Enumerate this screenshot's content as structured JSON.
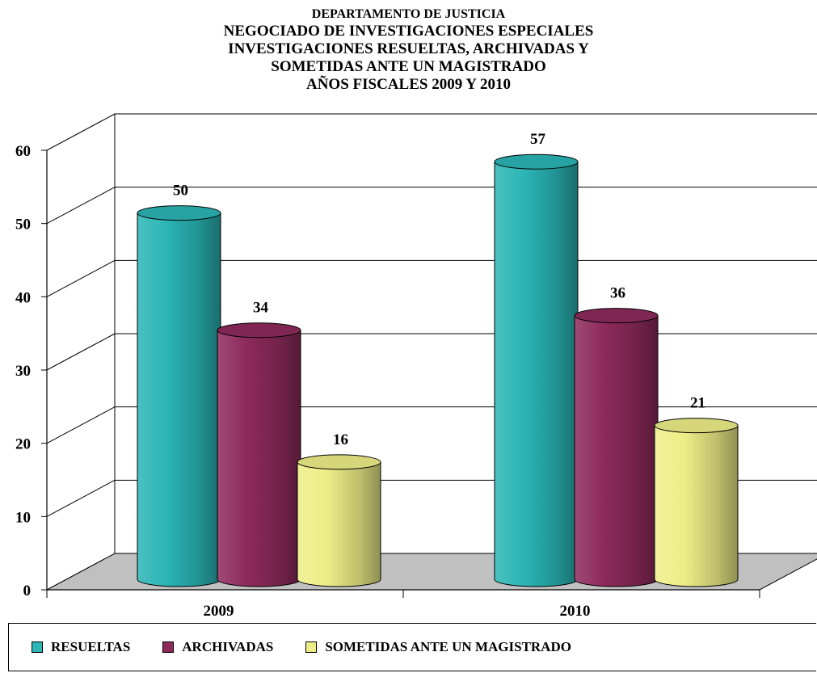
{
  "chart_data": {
    "type": "bar",
    "title_lines": [
      "DEPARTAMENTO DE  JUSTICIA",
      "NEGOCIADO DE INVESTIGACIONES ESPECIALES",
      "INVESTIGACIONES RESUELTAS, ARCHIVADAS Y",
      "SOMETIDAS ANTE UN MAGISTRADO",
      "AÑOS FISCALES 2009 Y 2010"
    ],
    "categories": [
      "2009",
      "2010"
    ],
    "series": [
      {
        "name": "RESUELTAS",
        "values": [
          50,
          57
        ],
        "color": "#2BB5B5"
      },
      {
        "name": "ARCHIVADAS",
        "values": [
          34,
          36
        ],
        "color": "#8E2A5B"
      },
      {
        "name": "SOMETIDAS ANTE UN MAGISTRADO",
        "values": [
          16,
          21
        ],
        "color": "#EEEE88"
      }
    ],
    "yticks": [
      0,
      10,
      20,
      30,
      40,
      50,
      60
    ],
    "ylim": [
      0,
      60
    ],
    "grid": true,
    "legend_position": "bottom",
    "style": "3d-cylinder"
  }
}
